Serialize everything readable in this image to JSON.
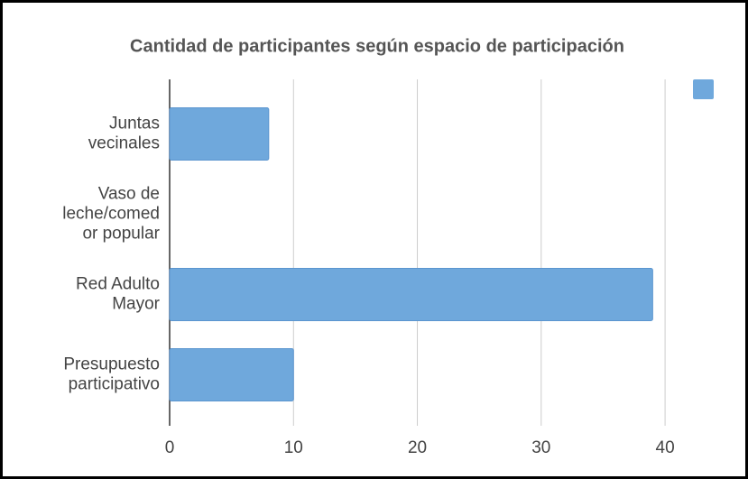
{
  "chart_data": {
    "type": "bar",
    "orientation": "horizontal",
    "title": "Cantidad de participantes según espacio de participación",
    "categories": [
      "Juntas\nvecinales",
      "Vaso de\nleche/comed\nor popular",
      "Red Adulto\nMayor",
      "Presupuesto\nparticipativo"
    ],
    "values": [
      8,
      0,
      39,
      10
    ],
    "color": "#6fa8dc",
    "xlim": [
      0,
      44
    ],
    "xticks": [
      0,
      10,
      20,
      30,
      40
    ],
    "grid": true
  }
}
